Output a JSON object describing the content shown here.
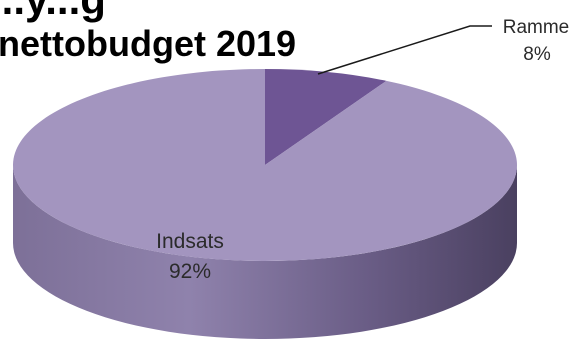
{
  "chart_data": {
    "type": "pie",
    "title_lines": [
      "...y...g",
      "nettobudget 2019"
    ],
    "slices": [
      {
        "label": "Ramme",
        "percent_label": "8%",
        "value": 8,
        "color": "#6e5594"
      },
      {
        "label": "Indsats",
        "percent_label": "92%",
        "value": 92,
        "color": "#a395bf"
      }
    ],
    "three_d": true,
    "legend": "none"
  }
}
